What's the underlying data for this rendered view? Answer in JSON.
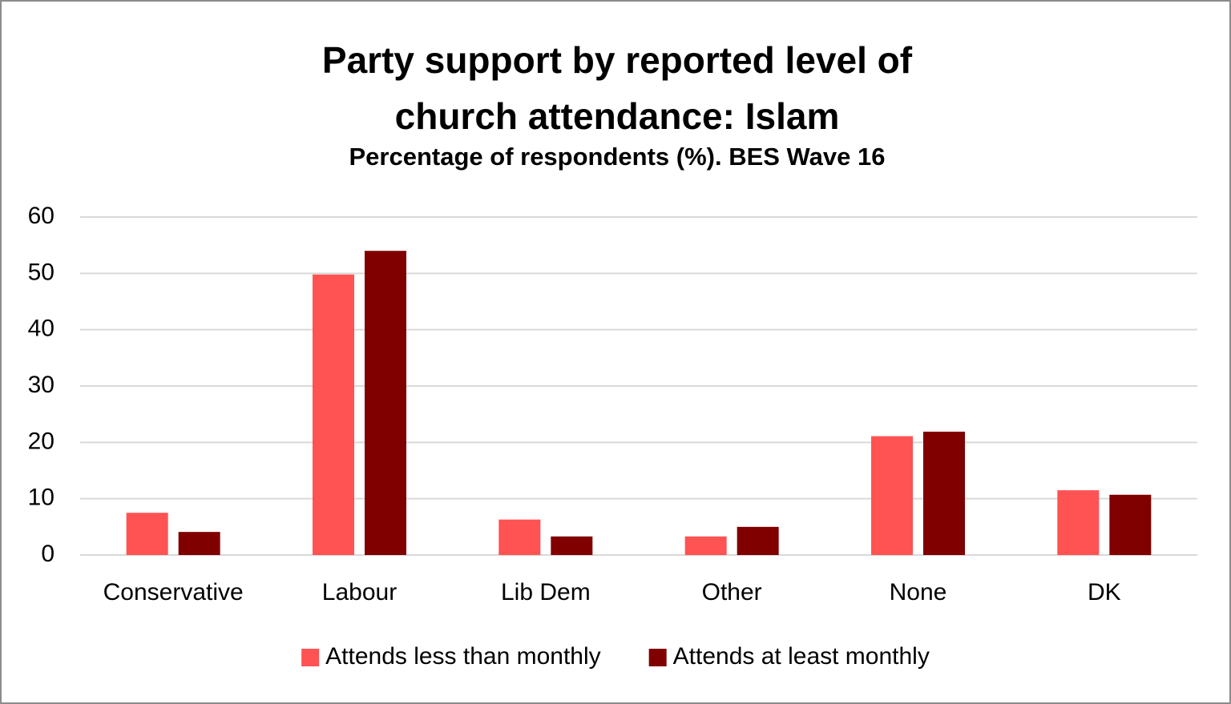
{
  "chart_data": {
    "type": "bar",
    "title": "Party support by reported level of church attendance: Islam",
    "subtitle": "Percentage of respondents (%). BES Wave 16",
    "categories": [
      "Conservative",
      "Labour",
      "Lib Dem",
      "Other",
      "None",
      "DK"
    ],
    "series": [
      {
        "name": "Attends less than monthly",
        "color": "#ff5252",
        "values": [
          7.5,
          49.8,
          6.3,
          3.3,
          21.1,
          11.5
        ]
      },
      {
        "name": "Attends at least monthly",
        "color": "#800000",
        "values": [
          4.1,
          54.0,
          3.3,
          5.0,
          21.9,
          10.7
        ]
      }
    ],
    "ylim": [
      0,
      60
    ],
    "yticks": [
      0,
      10,
      20,
      30,
      40,
      50,
      60
    ],
    "grid": true,
    "legend": "bottom"
  }
}
